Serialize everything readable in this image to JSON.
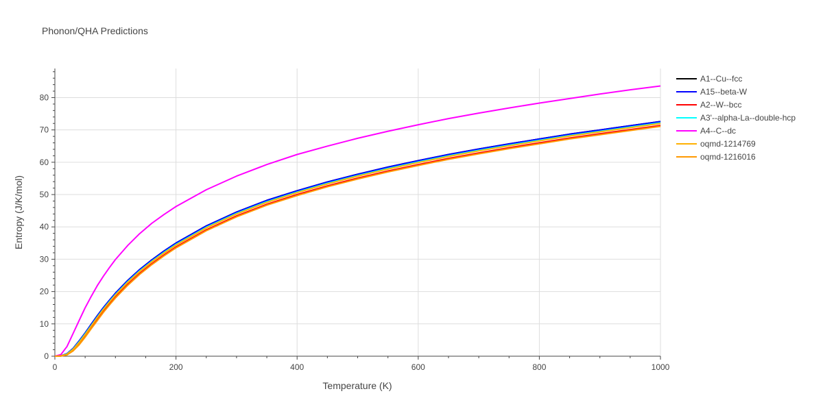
{
  "chart_data": {
    "type": "line",
    "title": "Phonon/QHA Predictions",
    "xlabel": "Temperature (K)",
    "ylabel": "Entropy (J/K/mol)",
    "xlim": [
      0,
      1000
    ],
    "ylim": [
      0,
      89
    ],
    "xticks": [
      0,
      200,
      400,
      600,
      800,
      1000
    ],
    "yticks": [
      0,
      10,
      20,
      30,
      40,
      50,
      60,
      70,
      80
    ],
    "grid": true,
    "legend_position": "right",
    "x": [
      0,
      10,
      20,
      30,
      40,
      50,
      60,
      70,
      80,
      90,
      100,
      120,
      140,
      160,
      180,
      200,
      250,
      300,
      350,
      400,
      450,
      500,
      550,
      600,
      650,
      700,
      750,
      800,
      850,
      900,
      950,
      1000
    ],
    "series": [
      {
        "name": "A1--Cu--fcc",
        "color": "#000000",
        "values": [
          0,
          0.1,
          0.8,
          2.4,
          4.7,
          7.2,
          9.9,
          12.5,
          15.0,
          17.3,
          19.5,
          23.4,
          26.8,
          29.8,
          32.5,
          35.0,
          40.3,
          44.6,
          48.2,
          51.2,
          53.9,
          56.3,
          58.5,
          60.5,
          62.4,
          64.1,
          65.7,
          67.2,
          68.7,
          70.0,
          71.3,
          72.6
        ]
      },
      {
        "name": "A15--beta-W",
        "color": "#0000ff",
        "values": [
          0,
          0.1,
          0.8,
          2.4,
          4.7,
          7.2,
          9.9,
          12.5,
          15.0,
          17.3,
          19.5,
          23.4,
          26.8,
          29.8,
          32.5,
          35.0,
          40.3,
          44.6,
          48.2,
          51.2,
          53.9,
          56.3,
          58.5,
          60.5,
          62.4,
          64.1,
          65.7,
          67.2,
          68.7,
          70.0,
          71.3,
          72.6
        ]
      },
      {
        "name": "A2--W--bcc",
        "color": "#ff0000",
        "values": [
          0,
          0.05,
          0.5,
          1.8,
          3.8,
          6.2,
          8.8,
          11.3,
          13.8,
          16.1,
          18.3,
          22.2,
          25.6,
          28.6,
          31.3,
          33.8,
          39.1,
          43.4,
          47.0,
          50.0,
          52.7,
          55.1,
          57.3,
          59.3,
          61.2,
          62.9,
          64.5,
          66.0,
          67.5,
          68.8,
          70.1,
          71.4
        ]
      },
      {
        "name": "A3'--alpha-La--double-hcp",
        "color": "#00ffff",
        "values": [
          0,
          0.1,
          0.7,
          2.2,
          4.4,
          6.9,
          9.5,
          12.1,
          14.6,
          16.9,
          19.1,
          23.0,
          26.4,
          29.4,
          32.1,
          34.6,
          39.9,
          44.2,
          47.8,
          50.8,
          53.5,
          55.9,
          58.1,
          60.1,
          62.0,
          63.7,
          65.3,
          66.8,
          68.3,
          69.6,
          70.9,
          72.2
        ]
      },
      {
        "name": "A4--C--dc",
        "color": "#ff00ff",
        "values": [
          0,
          0.5,
          3.0,
          7.0,
          11.0,
          15.0,
          18.5,
          21.8,
          24.7,
          27.4,
          29.9,
          34.2,
          37.9,
          41.1,
          43.8,
          46.3,
          51.5,
          55.7,
          59.3,
          62.4,
          65.0,
          67.4,
          69.6,
          71.6,
          73.5,
          75.2,
          76.8,
          78.3,
          79.7,
          81.1,
          82.4,
          83.6
        ]
      },
      {
        "name": "oqmd-1214769",
        "color": "#ffb000",
        "values": [
          0,
          0.1,
          0.6,
          2.1,
          4.2,
          6.7,
          9.3,
          11.9,
          14.4,
          16.7,
          18.9,
          22.8,
          26.2,
          29.2,
          31.9,
          34.4,
          39.7,
          44.0,
          47.6,
          50.6,
          53.3,
          55.7,
          57.9,
          59.9,
          61.8,
          63.5,
          65.1,
          66.6,
          68.1,
          69.4,
          70.7,
          72.0
        ]
      },
      {
        "name": "oqmd-1216016",
        "color": "#ff9900",
        "values": [
          0,
          0.05,
          0.4,
          1.6,
          3.5,
          5.9,
          8.5,
          11.0,
          13.5,
          15.8,
          18.0,
          21.9,
          25.3,
          28.3,
          31.0,
          33.5,
          38.8,
          43.1,
          46.7,
          49.7,
          52.4,
          54.8,
          57.0,
          59.0,
          60.9,
          62.6,
          64.2,
          65.7,
          67.2,
          68.5,
          69.8,
          71.1
        ]
      }
    ]
  }
}
